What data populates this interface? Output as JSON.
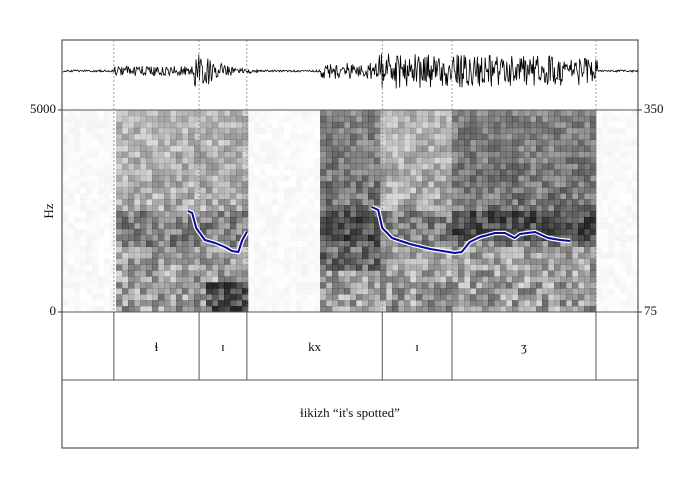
{
  "chart_data": {
    "type": "line",
    "ylabel": "Hz",
    "ylim": [
      0,
      5000
    ],
    "yticks": [
      0,
      5000
    ],
    "y2lim": [
      75,
      350
    ],
    "y2ticks": [
      75,
      350
    ],
    "xlim": [
      0,
      1
    ],
    "x": [
      0.219,
      0.226,
      0.233,
      0.248,
      0.266,
      0.283,
      0.295,
      0.306,
      0.313,
      0.321,
      null,
      0.538,
      0.549,
      0.556,
      0.573,
      0.604,
      0.639,
      0.682,
      0.694,
      0.708,
      0.726,
      0.752,
      0.769,
      0.786,
      0.795,
      0.821,
      0.844,
      0.865,
      0.882
    ],
    "series": [
      {
        "color": "#0a0a9a",
        "axis": "y2",
        "values": [
          212.5,
          209.8,
          189.4,
          173,
          169,
          163.5,
          158,
          156.7,
          173,
          184,
          null,
          218,
          213.9,
          189.4,
          175.7,
          167.6,
          160.8,
          155.3,
          156.7,
          170.3,
          177.1,
          182.5,
          182.5,
          175.7,
          181.2,
          183.9,
          175.7,
          173,
          171.7
        ]
      }
    ],
    "boundaries": [
      0.09,
      0.238,
      0.321,
      0.556,
      0.677,
      0.927
    ],
    "segments": [
      "ɬ",
      "ɪ",
      "kx",
      "ɪ",
      "ʒ"
    ],
    "gloss": "ɬikizh “it's spotted”"
  }
}
